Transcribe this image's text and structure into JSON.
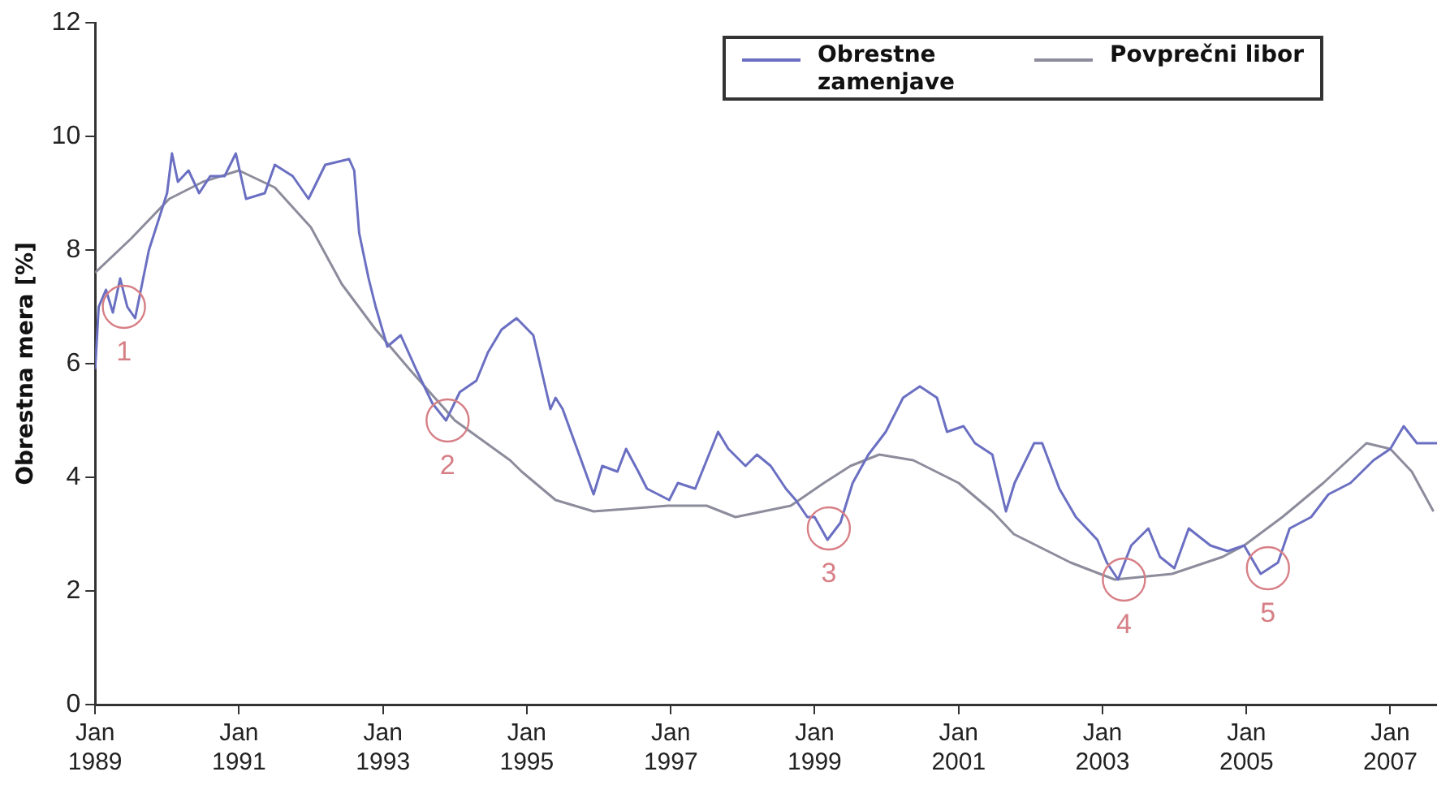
{
  "chart_data": {
    "type": "line",
    "ylabel": "Obrestna mera [%]",
    "xlim": [
      "1989-01-01",
      "2007-08-26"
    ],
    "ylim": [
      0,
      12
    ],
    "xticks": [
      {
        "value": "1989-01",
        "label": "Jan 1989"
      },
      {
        "value": "1991-01",
        "label": "Jan 1991"
      },
      {
        "value": "1993-01",
        "label": "Jan 1993"
      },
      {
        "value": "1995-01",
        "label": "Jan 1995"
      },
      {
        "value": "1997-01",
        "label": "Jan 1997"
      },
      {
        "value": "1999-01",
        "label": "Jan 1999"
      },
      {
        "value": "2001-01",
        "label": "Jan 2001"
      },
      {
        "value": "2003-01",
        "label": "Jan 2003"
      },
      {
        "value": "2005-01",
        "label": "Jan 2005"
      },
      {
        "value": "2007-01",
        "label": "Jan 2007"
      }
    ],
    "yticks": [
      0,
      2,
      4,
      6,
      8,
      10,
      12
    ],
    "grid": false,
    "legend": "top right",
    "marker": "none",
    "line_style": "solid",
    "series": [
      {
        "name": "Obrestne zamenjave",
        "color": "#6a6fc2",
        "x": [
          "1989-01-01",
          "1989-01-19",
          "1989-02-25",
          "1989-04-01",
          "1989-05-08",
          "1989-06-13",
          "1989-07-23",
          "1989-10-01",
          "1990-01-01",
          "1990-01-26",
          "1990-02-25",
          "1990-04-20",
          "1990-06-13",
          "1990-08-08",
          "1990-10-20",
          "1990-12-16",
          "1991-02-06",
          "1991-05-12",
          "1991-07-02",
          "1991-10-01",
          "1991-12-20",
          "1992-03-14",
          "1992-07-13",
          "1992-08-08",
          "1992-09-02",
          "1992-10-20",
          "1992-11-25",
          "1993-01-23",
          "1993-04-01",
          "1993-06-18",
          "1993-09-09",
          "1993-11-17",
          "1994-01-26",
          "1994-04-20",
          "1994-06-18",
          "1994-08-26",
          "1994-11-10",
          "1995-02-03",
          "1995-05-01",
          "1995-05-27",
          "1995-07-02",
          "1995-12-06",
          "1996-01-19",
          "1996-04-05",
          "1996-05-19",
          "1996-07-20",
          "1996-09-02",
          "1996-12-24",
          "1997-02-06",
          "1997-05-05",
          "1997-08-29",
          "1997-10-20",
          "1998-01-15",
          "1998-03-14",
          "1998-05-23",
          "1998-08-08",
          "1998-09-27",
          "1998-11-25",
          "1999-01-01",
          "1999-03-07",
          "1999-05-12",
          "1999-07-13",
          "1999-10-01",
          "1999-12-28",
          "2000-03-25",
          "2000-06-18",
          "2000-09-13",
          "2000-11-03",
          "2001-01-26",
          "2001-03-25",
          "2001-06-21",
          "2001-08-29",
          "2001-10-12",
          "2002-01-19",
          "2002-03-01",
          "2002-05-27",
          "2002-08-19",
          "2002-12-06",
          "2003-01-23",
          "2003-03-21",
          "2003-05-27",
          "2003-08-22",
          "2003-10-20",
          "2004-01-01",
          "2004-03-14",
          "2004-07-02",
          "2004-09-27",
          "2004-12-20",
          "2005-03-14",
          "2005-06-10",
          "2005-08-08",
          "2005-11-25",
          "2006-02-21",
          "2006-06-13",
          "2006-10-08",
          "2007-01-01",
          "2007-03-10",
          "2007-05-16",
          "2007-08-26"
        ],
        "values": [
          5.9,
          7.0,
          7.3,
          6.9,
          7.5,
          7.0,
          6.8,
          8.0,
          9.0,
          9.7,
          9.2,
          9.4,
          9.0,
          9.3,
          9.3,
          9.7,
          8.9,
          9.0,
          9.5,
          9.3,
          8.9,
          9.5,
          9.6,
          9.4,
          8.3,
          7.5,
          7.0,
          6.3,
          6.5,
          5.9,
          5.3,
          5.0,
          5.5,
          5.7,
          6.2,
          6.6,
          6.8,
          6.5,
          5.2,
          5.4,
          5.2,
          3.7,
          4.2,
          4.1,
          4.5,
          4.1,
          3.8,
          3.6,
          3.9,
          3.8,
          4.8,
          4.5,
          4.2,
          4.4,
          4.2,
          3.8,
          3.6,
          3.3,
          3.3,
          2.9,
          3.2,
          3.9,
          4.4,
          4.8,
          5.4,
          5.6,
          5.4,
          4.8,
          4.9,
          4.6,
          4.4,
          3.4,
          3.9,
          4.6,
          4.6,
          3.8,
          3.3,
          2.9,
          2.5,
          2.2,
          2.8,
          3.1,
          2.6,
          2.4,
          3.1,
          2.8,
          2.7,
          2.8,
          2.3,
          2.5,
          3.1,
          3.3,
          3.7,
          3.9,
          4.3,
          4.5,
          4.9,
          4.6,
          4.6
        ]
      },
      {
        "name": "Povprečni libor",
        "color": "#8c8c9c",
        "x": [
          "1989-01-01",
          "1989-07-02",
          "1990-01-12",
          "1990-07-02",
          "1991-01-01",
          "1991-07-02",
          "1992-01-01",
          "1992-06-06",
          "1992-11-25",
          "1993-05-16",
          "1994-01-01",
          "1994-10-08",
          "1994-12-06",
          "1995-05-27",
          "1995-12-06",
          "1996-12-16",
          "1997-07-02",
          "1997-11-25",
          "1998-09-02",
          "1999-02-17",
          "1999-07-02",
          "1999-11-25",
          "2000-05-16",
          "2001-01-01",
          "2001-06-21",
          "2001-10-08",
          "2002-07-23",
          "2003-03-04",
          "2003-12-20",
          "2004-09-02",
          "2004-12-20",
          "2005-07-02",
          "2006-01-26",
          "2006-09-02",
          "2007-01-01",
          "2007-04-20",
          "2007-08-08"
        ],
        "values": [
          7.6,
          8.2,
          8.9,
          9.2,
          9.4,
          9.1,
          8.4,
          7.4,
          6.6,
          5.9,
          5.0,
          4.3,
          4.1,
          3.6,
          3.4,
          3.5,
          3.5,
          3.3,
          3.5,
          3.9,
          4.2,
          4.4,
          4.3,
          3.9,
          3.4,
          3.0,
          2.5,
          2.2,
          2.3,
          2.6,
          2.8,
          3.3,
          3.9,
          4.6,
          4.5,
          4.1,
          3.4
        ]
      }
    ],
    "annotations": [
      {
        "text": "1",
        "x": "1989-05-27",
        "y": 7.0
      },
      {
        "text": "2",
        "x": "1993-11-25",
        "y": 5.0
      },
      {
        "text": "3",
        "x": "1999-03-14",
        "y": 3.1
      },
      {
        "text": "4",
        "x": "2003-04-20",
        "y": 2.2
      },
      {
        "text": "5",
        "x": "2005-04-20",
        "y": 2.4
      }
    ]
  }
}
